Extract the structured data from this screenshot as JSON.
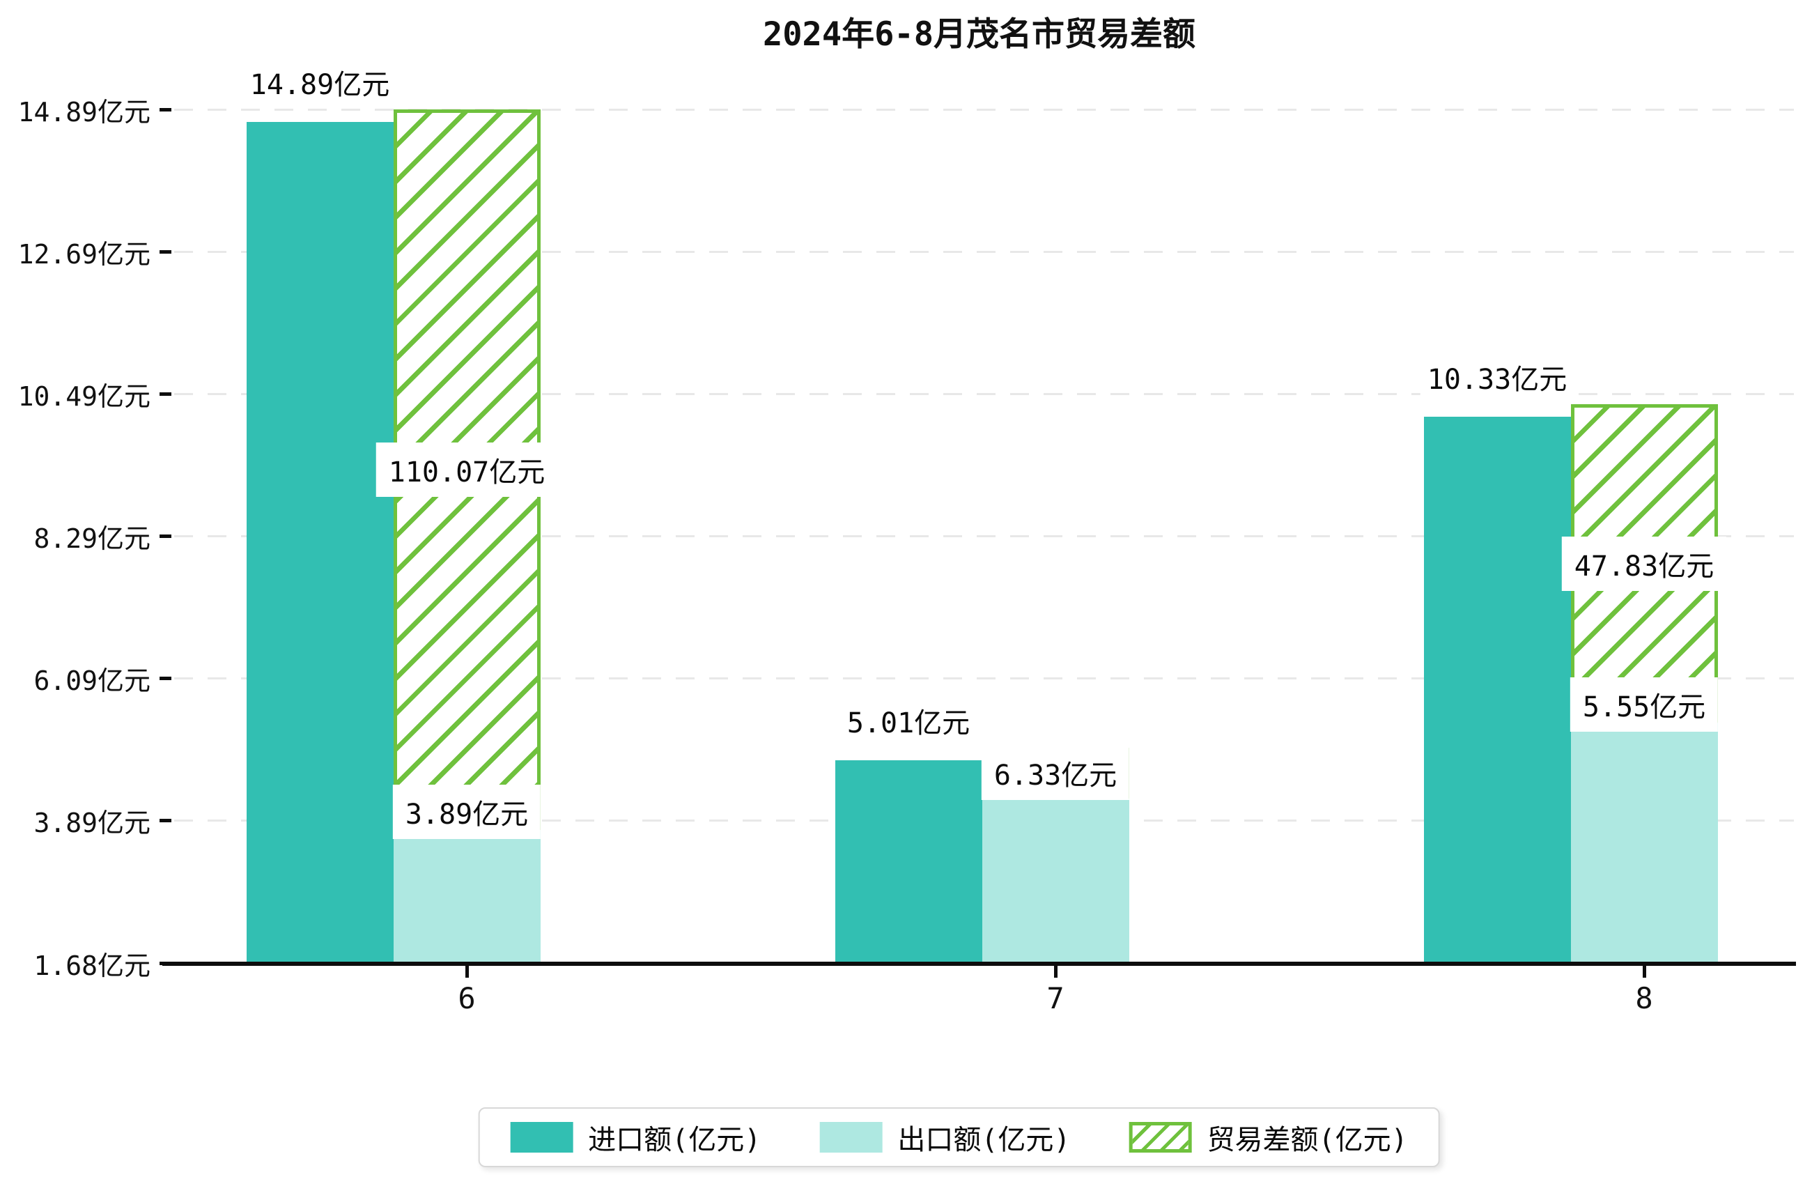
{
  "chart_data": {
    "type": "bar",
    "title": "2024年6-8月茂名市贸易差额",
    "categories": [
      "6",
      "7",
      "8"
    ],
    "series": [
      {
        "name": "进口额(亿元)",
        "role": "import",
        "values": [
          14.89,
          5.01,
          10.33
        ],
        "labels": [
          "14.89亿元",
          "5.01亿元",
          "10.33亿元"
        ],
        "color": "#32bfb2"
      },
      {
        "name": "出口额(亿元)",
        "role": "export",
        "values": [
          3.89,
          4.38,
          5.55
        ],
        "labels": [
          "3.89亿元",
          null,
          "5.55亿元"
        ],
        "color": "#aee8e1",
        "note": "month-7 bar value estimated from bar height; its label is covered by the balance label box"
      },
      {
        "name": "贸易差额(亿元)",
        "role": "balance",
        "values": [
          110.07,
          6.33,
          47.83
        ],
        "labels": [
          "110.07亿元",
          "6.33亿元",
          "47.83亿元"
        ],
        "color": "#6fc13d",
        "style": "white bar with green diagonal hatch and green border, drawn from export bar top up to import bar top"
      }
    ],
    "y_axis": {
      "tick_labels": [
        "14.89亿元",
        "12.69亿元",
        "10.49亿元",
        "8.29亿元",
        "6.09亿元",
        "3.89亿元",
        "1.68亿元"
      ],
      "tick_values": [
        14.89,
        12.69,
        10.49,
        8.29,
        6.09,
        3.89,
        1.68
      ],
      "min": 1.68,
      "max": 14.89
    },
    "x_axis": {
      "tick_labels": [
        "6",
        "7",
        "8"
      ]
    },
    "legend": {
      "position": "bottom-center",
      "entries": [
        {
          "label": "进口额(亿元)",
          "swatch": "solid-teal"
        },
        {
          "label": "出口额(亿元)",
          "swatch": "solid-light-teal"
        },
        {
          "label": "贸易差额(亿元)",
          "swatch": "green-hatched"
        }
      ]
    },
    "grid": "horizontal-dashed-light-gray",
    "background": "#ffffff"
  },
  "colors": {
    "import": "#32bfb2",
    "export": "#aee8e1",
    "balance_green": "#6fc13d",
    "gridline": "#e8e8e8",
    "axis": "#0d0d0d",
    "text": "#111111",
    "label_box_bg": "#ffffff",
    "legend_border": "#d8d8d8"
  }
}
